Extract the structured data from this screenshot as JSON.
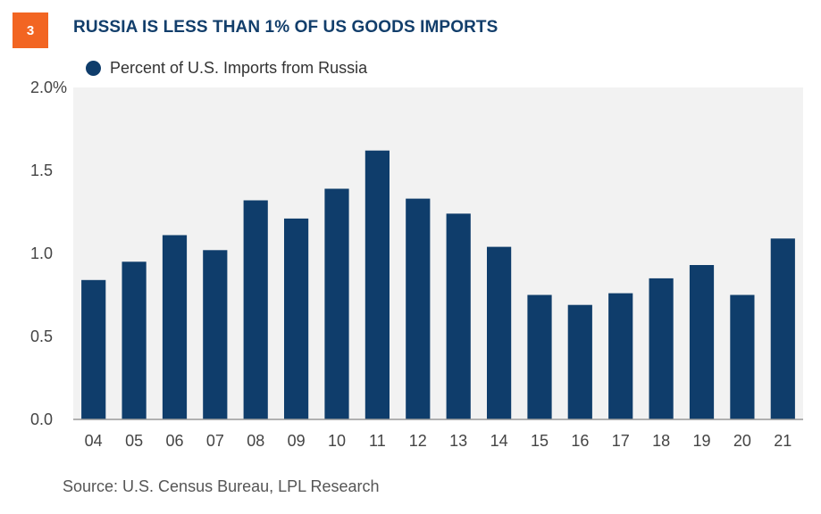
{
  "figure_number": "3",
  "title": "RUSSIA IS LESS THAN 1% OF US GOODS IMPORTS",
  "source": "Source: U.S. Census Bureau, LPL Research",
  "colors": {
    "bar": "#0f3d6b",
    "badge": "#f26522",
    "panel": "#f2f2f2",
    "title": "#123e6b"
  },
  "chart_data": {
    "type": "bar",
    "categories": [
      "04",
      "05",
      "06",
      "07",
      "08",
      "09",
      "10",
      "11",
      "12",
      "13",
      "14",
      "15",
      "16",
      "17",
      "18",
      "19",
      "20",
      "21"
    ],
    "series": [
      {
        "name": "Percent of U.S. Imports from Russia",
        "values": [
          0.84,
          0.95,
          1.11,
          1.02,
          1.32,
          1.21,
          1.39,
          1.62,
          1.33,
          1.24,
          1.04,
          0.75,
          0.69,
          0.76,
          0.85,
          0.93,
          0.75,
          1.09
        ]
      }
    ],
    "ylim": [
      0,
      2.0
    ],
    "yticks": [
      0,
      0.5,
      1.0,
      1.5,
      2.0
    ],
    "ytick_labels": [
      "0.0",
      "0.5",
      "1.0",
      "1.5",
      "2.0%"
    ],
    "xlabel": "",
    "ylabel": "",
    "grid": false,
    "legend_position": "top-left"
  }
}
